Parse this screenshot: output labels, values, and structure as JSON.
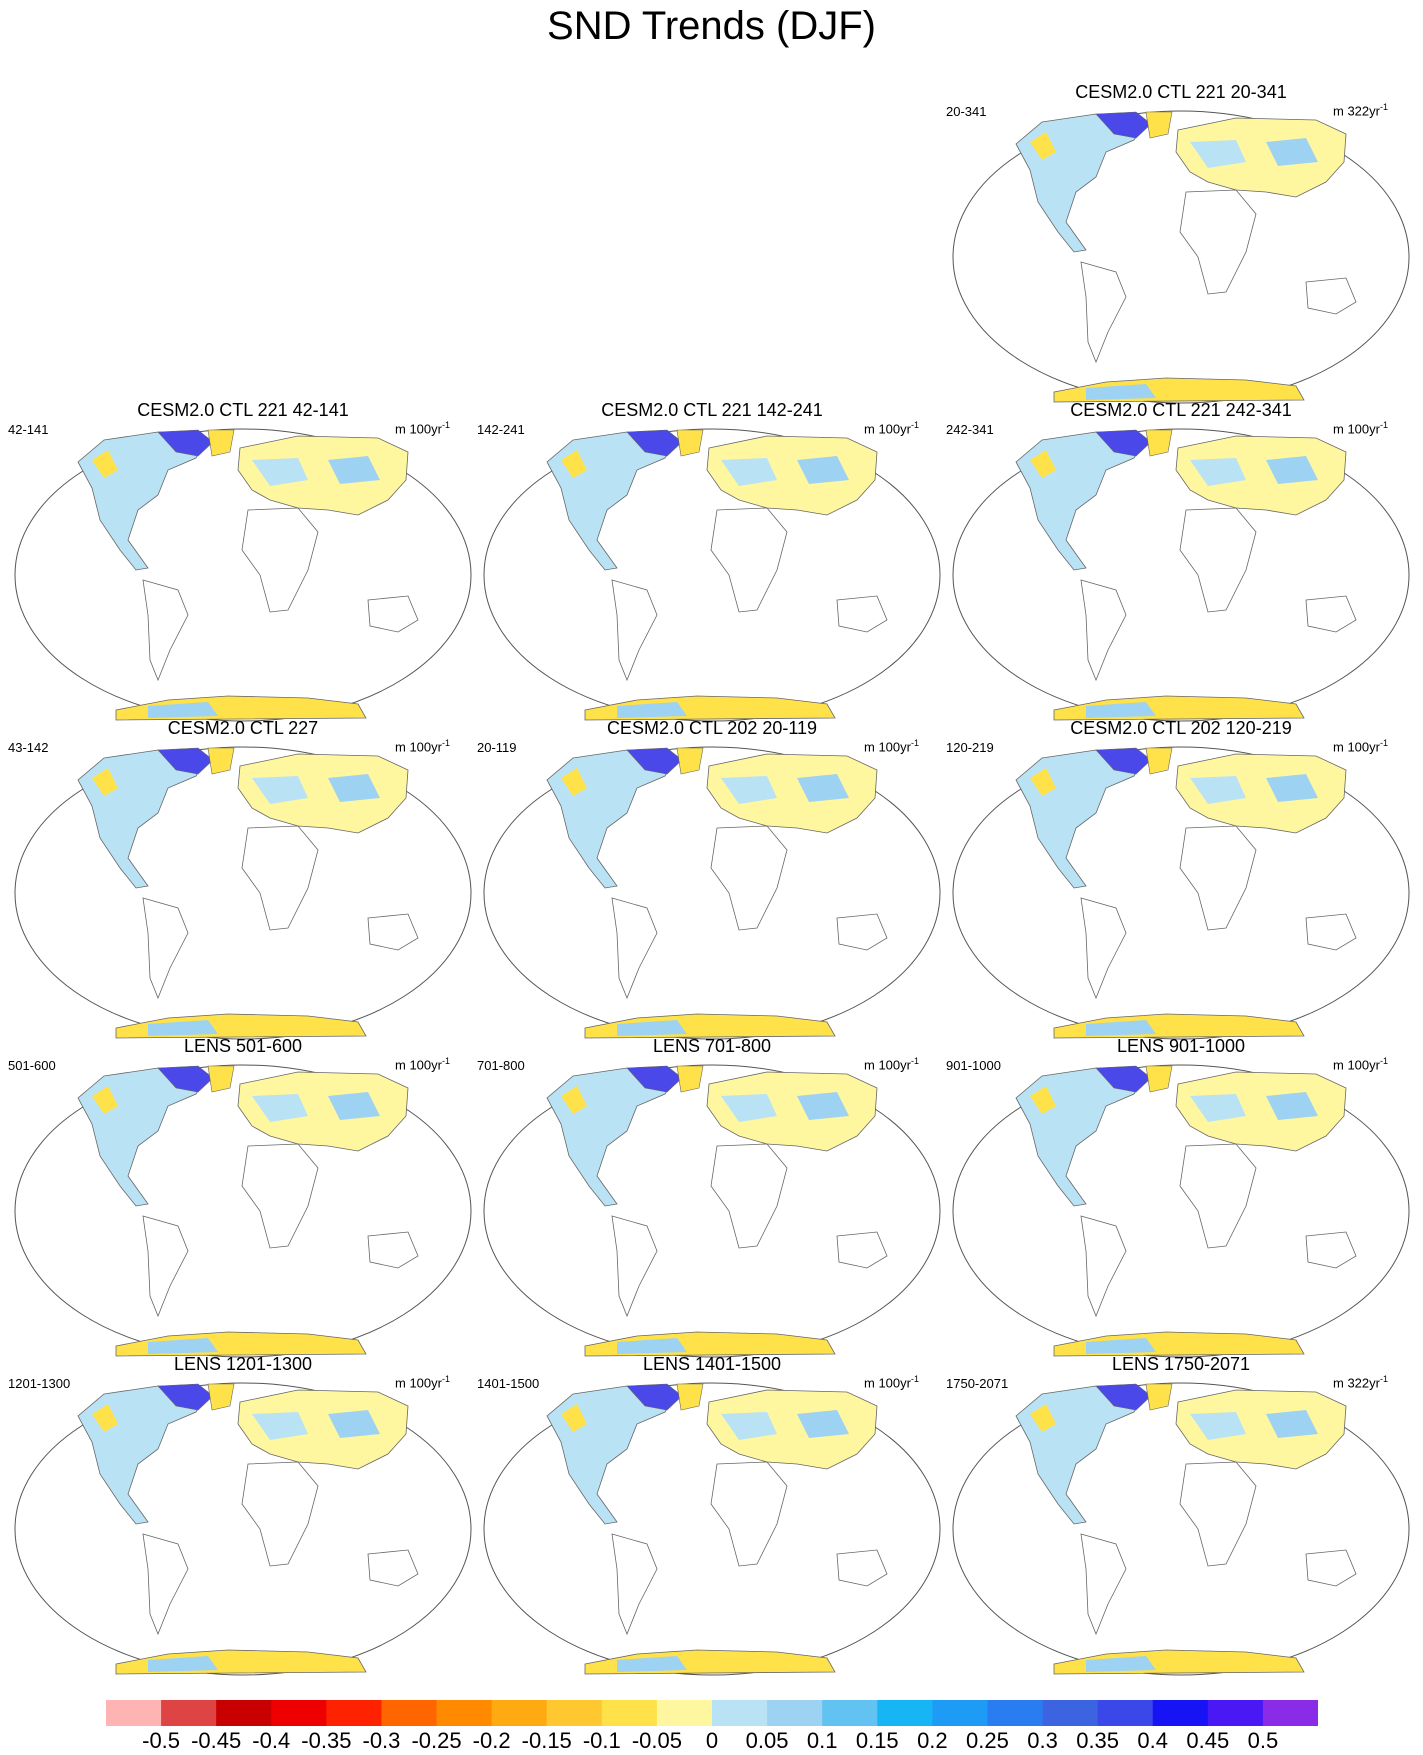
{
  "title": "SND Trends (DJF)",
  "panels": [
    {
      "title": "CESM2.0 CTL 221 20-341",
      "left_label": "20-341",
      "unit": "m 322yr",
      "unit_sup": "-1"
    },
    {
      "title": "CESM2.0 CTL 221 42-141",
      "left_label": "42-141",
      "unit": "m 100yr",
      "unit_sup": "-1"
    },
    {
      "title": "CESM2.0 CTL 221 142-241",
      "left_label": "142-241",
      "unit": "m 100yr",
      "unit_sup": "-1"
    },
    {
      "title": "CESM2.0 CTL 221 242-341",
      "left_label": "242-341",
      "unit": "m 100yr",
      "unit_sup": "-1"
    },
    {
      "title": "CESM2.0 CTL 227",
      "left_label": "43-142",
      "unit": "m 100yr",
      "unit_sup": "-1"
    },
    {
      "title": "CESM2.0 CTL 202 20-119",
      "left_label": "20-119",
      "unit": "m 100yr",
      "unit_sup": "-1"
    },
    {
      "title": "CESM2.0 CTL 202 120-219",
      "left_label": "120-219",
      "unit": "m 100yr",
      "unit_sup": "-1"
    },
    {
      "title": "LENS 501-600",
      "left_label": "501-600",
      "unit": "m 100yr",
      "unit_sup": "-1"
    },
    {
      "title": "LENS 701-800",
      "left_label": "701-800",
      "unit": "m 100yr",
      "unit_sup": "-1"
    },
    {
      "title": "LENS 901-1000",
      "left_label": "901-1000",
      "unit": "m 100yr",
      "unit_sup": "-1"
    },
    {
      "title": "LENS 1201-1300",
      "left_label": "1201-1300",
      "unit": "m 100yr",
      "unit_sup": "-1"
    },
    {
      "title": "LENS 1401-1500",
      "left_label": "1401-1500",
      "unit": "m 100yr",
      "unit_sup": "-1"
    },
    {
      "title": "LENS 1750-2071",
      "left_label": "1750-2071",
      "unit": "m 322yr",
      "unit_sup": "-1"
    }
  ],
  "colorbar": {
    "labels": [
      "-0.5",
      "-0.45",
      "-0.4",
      "-0.35",
      "-0.3",
      "-0.25",
      "-0.2",
      "-0.15",
      "-0.1",
      "-0.05",
      "0",
      "0.05",
      "0.1",
      "0.15",
      "0.2",
      "0.25",
      "0.3",
      "0.35",
      "0.4",
      "0.45",
      "0.5"
    ],
    "colors": [
      "#ffb4b4",
      "#de4444",
      "#c80000",
      "#ee0000",
      "#ff2200",
      "#ff6600",
      "#ff8a00",
      "#ffaa11",
      "#ffc830",
      "#ffe24a",
      "#fff7a0",
      "#b9e2f5",
      "#9dd2f2",
      "#62c3f2",
      "#18b5f5",
      "#1e9bf5",
      "#2a7df0",
      "#3c64e0",
      "#3a48ea",
      "#1614f5",
      "#4a18f5",
      "#8a2be8"
    ]
  }
}
